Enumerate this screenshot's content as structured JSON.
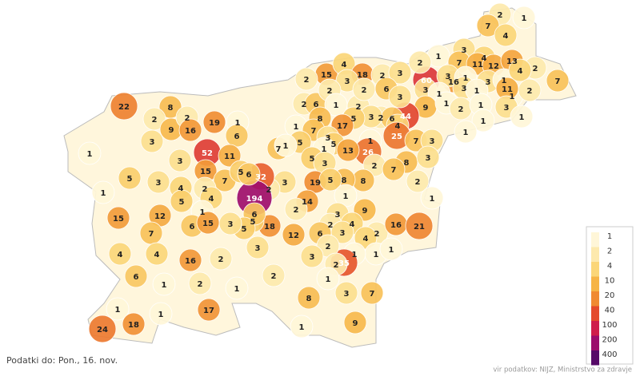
{
  "footer": {
    "date": "Podatki do: Pon., 16. nov.",
    "source": "vir podatkov: NIJZ, Ministrstvo za zdravje"
  },
  "legend": {
    "scale": "log",
    "ticks": [
      1,
      2,
      4,
      10,
      20,
      40,
      100,
      200,
      400
    ],
    "colors": [
      "#fff6d8",
      "#fde9ad",
      "#fbd678",
      "#f6b446",
      "#f08a32",
      "#e44a2c",
      "#cf1d4b",
      "#9c0c6c",
      "#560a68"
    ]
  },
  "municipalities": [
    2,
    1,
    7,
    4,
    3,
    1,
    7,
    4,
    11,
    12,
    13,
    2,
    60,
    16,
    2,
    3,
    1,
    3,
    1,
    4,
    1,
    11,
    2,
    7,
    3,
    1,
    3,
    1,
    9,
    1,
    2,
    1,
    3,
    1,
    1,
    44,
    15,
    4,
    18,
    3,
    2,
    3,
    2,
    6,
    3,
    2,
    6,
    2,
    1,
    2,
    2,
    2,
    6,
    3,
    5,
    4,
    8,
    17,
    1,
    7,
    5,
    7,
    1,
    3,
    5,
    1,
    26,
    25,
    7,
    3,
    1,
    8,
    1,
    13,
    5,
    3,
    2,
    7,
    3,
    8,
    8,
    19,
    5,
    3,
    2,
    32,
    1,
    14,
    2,
    9,
    2,
    1,
    3,
    2,
    4,
    3,
    2,
    4,
    6,
    12,
    16,
    21,
    18,
    5,
    194,
    6,
    5,
    3,
    3,
    1,
    1,
    1,
    35,
    2,
    3,
    2,
    1,
    3,
    7,
    8,
    9,
    1,
    2,
    22,
    8,
    2,
    9,
    2,
    16,
    19,
    1,
    6,
    3,
    1,
    52,
    11,
    3,
    15,
    5,
    3,
    4,
    7,
    5,
    6,
    1,
    2,
    4,
    5,
    1,
    15,
    12,
    6,
    15,
    7,
    4,
    4,
    16,
    2,
    6,
    1,
    2,
    1,
    17,
    1,
    18,
    1,
    24
  ]
}
